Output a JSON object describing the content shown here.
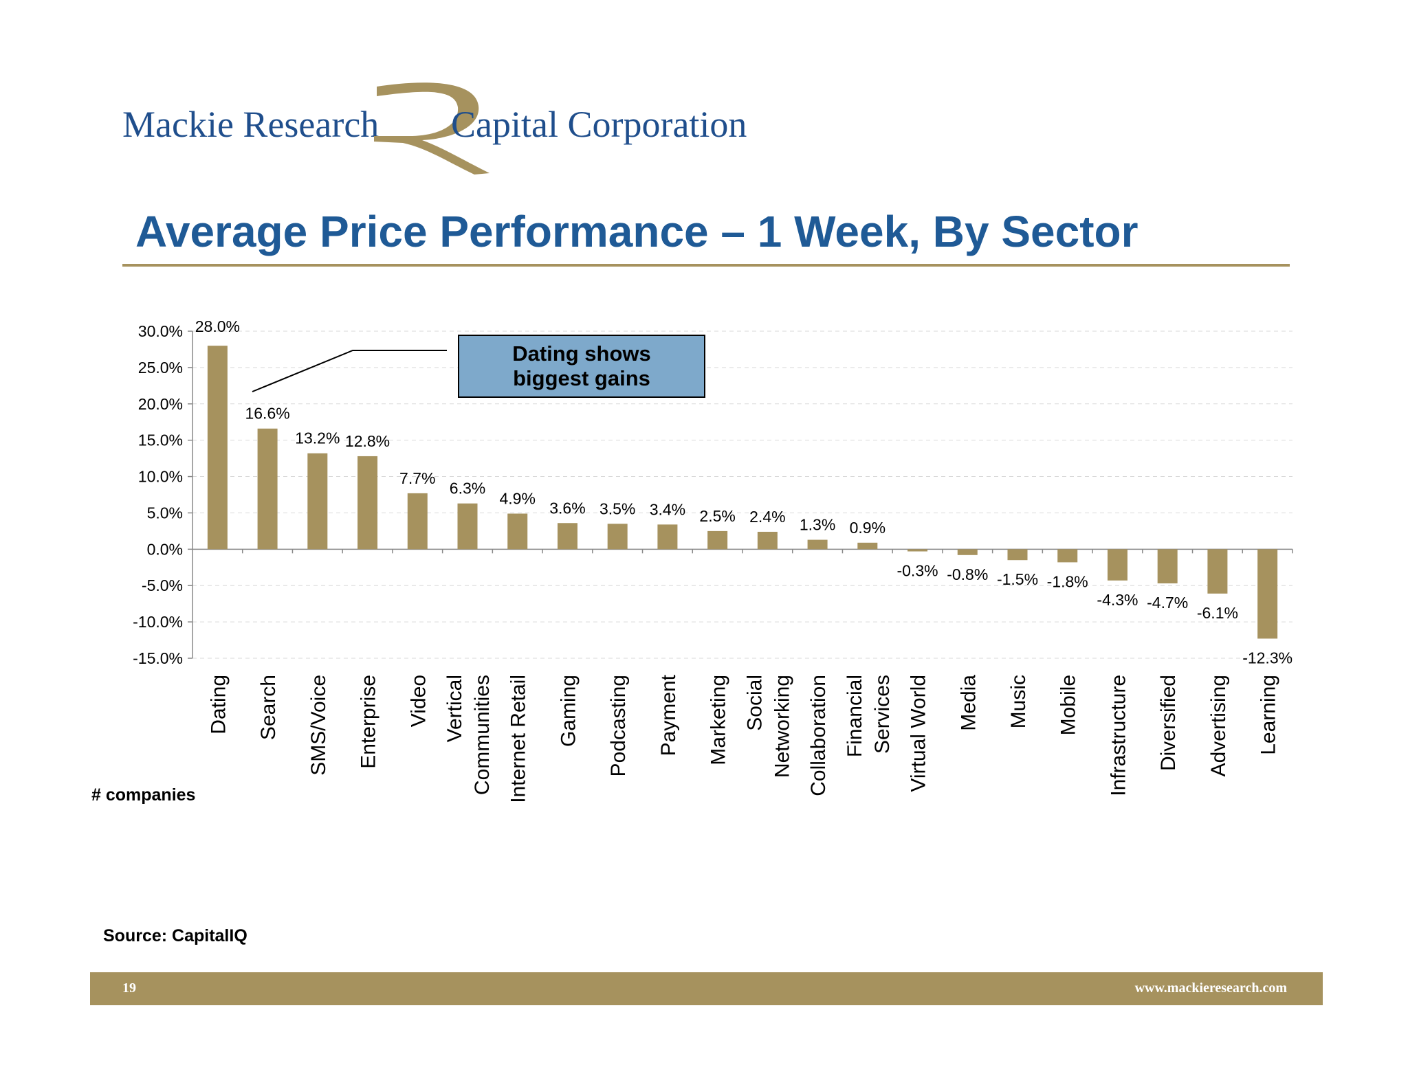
{
  "header": {
    "logo_left": "Mackie Research",
    "logo_right": "Capital Corporation",
    "logo_mark": "stylized-r-mark",
    "title": "Average Price Performance – 1 Week, By Sector"
  },
  "callout": {
    "text": "Dating shows biggest gains",
    "fill_color": "#7ea9cb"
  },
  "labels": {
    "companies": "# companies",
    "source": "Source: CapitalIQ"
  },
  "footer": {
    "page_number": "19",
    "url": "www.mackieresearch.com"
  },
  "colors": {
    "bar": "#a6925e",
    "title": "#1f5a96",
    "logo_text": "#1f4e8c",
    "rule": "#a6925e"
  },
  "chart_data": {
    "type": "bar",
    "categories": [
      "Dating",
      "Search",
      "SMS/Voice",
      "Enterprise",
      "Video",
      "Vertical Communities",
      "Internet Retail",
      "Gaming",
      "Podcasting",
      "Payment",
      "Marketing",
      "Social Networking",
      "Collaboration",
      "Financial Services",
      "Virtual World",
      "Media",
      "Music",
      "Mobile",
      "Infrastructure",
      "Diversified",
      "Advertising",
      "Learning"
    ],
    "category_lines": [
      [
        "Dating"
      ],
      [
        "Search"
      ],
      [
        "SMS/Voice"
      ],
      [
        "Enterprise"
      ],
      [
        "Video"
      ],
      [
        "Vertical",
        "Communities"
      ],
      [
        "Internet Retail"
      ],
      [
        "Gaming"
      ],
      [
        "Podcasting"
      ],
      [
        "Payment"
      ],
      [
        "Marketing"
      ],
      [
        "Social",
        "Networking"
      ],
      [
        "Collaboration"
      ],
      [
        "Financial",
        "Services"
      ],
      [
        "Virtual World"
      ],
      [
        "Media"
      ],
      [
        "Music"
      ],
      [
        "Mobile"
      ],
      [
        "Infrastructure"
      ],
      [
        "Diversified"
      ],
      [
        "Advertising"
      ],
      [
        "Learning"
      ]
    ],
    "values": [
      28.0,
      16.6,
      13.2,
      12.8,
      7.7,
      6.3,
      4.9,
      3.6,
      3.5,
      3.4,
      2.5,
      2.4,
      1.3,
      0.9,
      -0.3,
      -0.8,
      -1.5,
      -1.8,
      -4.3,
      -4.7,
      -6.1,
      -12.3
    ],
    "data_labels": [
      "28.0%",
      "16.6%",
      "13.2%",
      "12.8%",
      "7.7%",
      "6.3%",
      "4.9%",
      "3.6%",
      "3.5%",
      "3.4%",
      "2.5%",
      "2.4%",
      "1.3%",
      "0.9%",
      "-0.3%",
      "-0.8%",
      "-1.5%",
      "-1.8%",
      "-4.3%",
      "-4.7%",
      "-6.1%",
      "-12.3%"
    ],
    "ylim": [
      -15,
      30
    ],
    "yticks": [
      30,
      25,
      20,
      15,
      10,
      5,
      0,
      -5,
      -10,
      -15
    ],
    "ytick_labels": [
      "30.0%",
      "25.0%",
      "20.0%",
      "15.0%",
      "10.0%",
      "5.0%",
      "0.0%",
      "-5.0%",
      "-10.0%",
      "-15.0%"
    ],
    "grid": true,
    "legend": "none",
    "title": "",
    "xlabel": "",
    "ylabel": ""
  }
}
